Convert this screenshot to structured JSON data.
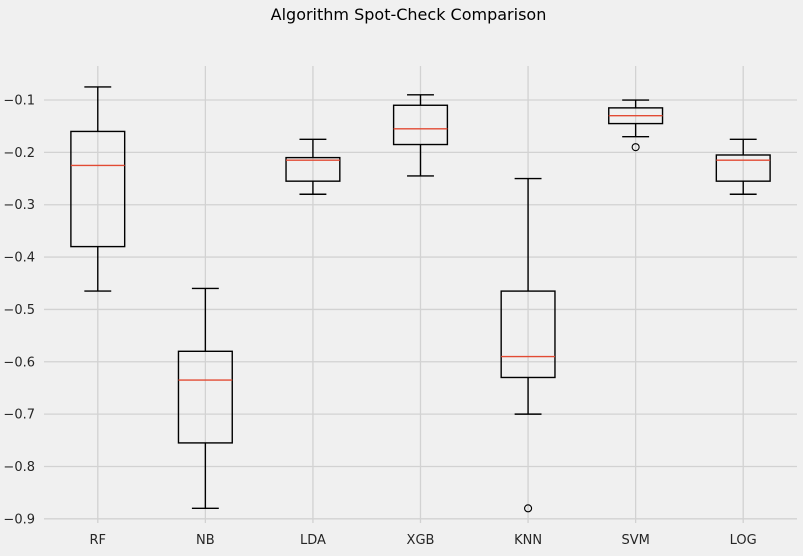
{
  "figure": {
    "background": "#f0f0f0"
  },
  "chart_data": {
    "type": "boxplot",
    "title": "Algorithm Spot-Check Comparison",
    "categories": [
      "RF",
      "NB",
      "LDA",
      "XGB",
      "KNN",
      "SVM",
      "LOG"
    ],
    "series": [
      {
        "name": "RF",
        "whislo": -0.465,
        "q1": -0.38,
        "med": -0.225,
        "q3": -0.16,
        "whishi": -0.075,
        "fliers": []
      },
      {
        "name": "NB",
        "whislo": -0.88,
        "q1": -0.755,
        "med": -0.635,
        "q3": -0.58,
        "whishi": -0.46,
        "fliers": []
      },
      {
        "name": "LDA",
        "whislo": -0.28,
        "q1": -0.255,
        "med": -0.215,
        "q3": -0.21,
        "whishi": -0.175,
        "fliers": []
      },
      {
        "name": "XGB",
        "whislo": -0.245,
        "q1": -0.185,
        "med": -0.155,
        "q3": -0.11,
        "whishi": -0.09,
        "fliers": []
      },
      {
        "name": "KNN",
        "whislo": -0.7,
        "q1": -0.63,
        "med": -0.59,
        "q3": -0.465,
        "whishi": -0.25,
        "fliers": [
          -0.88
        ]
      },
      {
        "name": "SVM",
        "whislo": -0.17,
        "q1": -0.145,
        "med": -0.13,
        "q3": -0.115,
        "whishi": -0.1,
        "fliers": [
          -0.19
        ]
      },
      {
        "name": "LOG",
        "whislo": -0.28,
        "q1": -0.255,
        "med": -0.215,
        "q3": -0.205,
        "whishi": -0.175,
        "fliers": []
      }
    ],
    "xlabel": "",
    "ylabel": "",
    "ylim": [
      -0.908,
      -0.035
    ],
    "yticks": [
      -0.9,
      -0.8,
      -0.7,
      -0.6,
      -0.5,
      -0.4,
      -0.3,
      -0.2,
      -0.1
    ],
    "grid": true,
    "legend": "none",
    "colors": {
      "box_line": "#000000",
      "median": "#e24a33",
      "grid": "#d2d2d2",
      "background": "#f0f0f0",
      "text": "#262626"
    }
  }
}
